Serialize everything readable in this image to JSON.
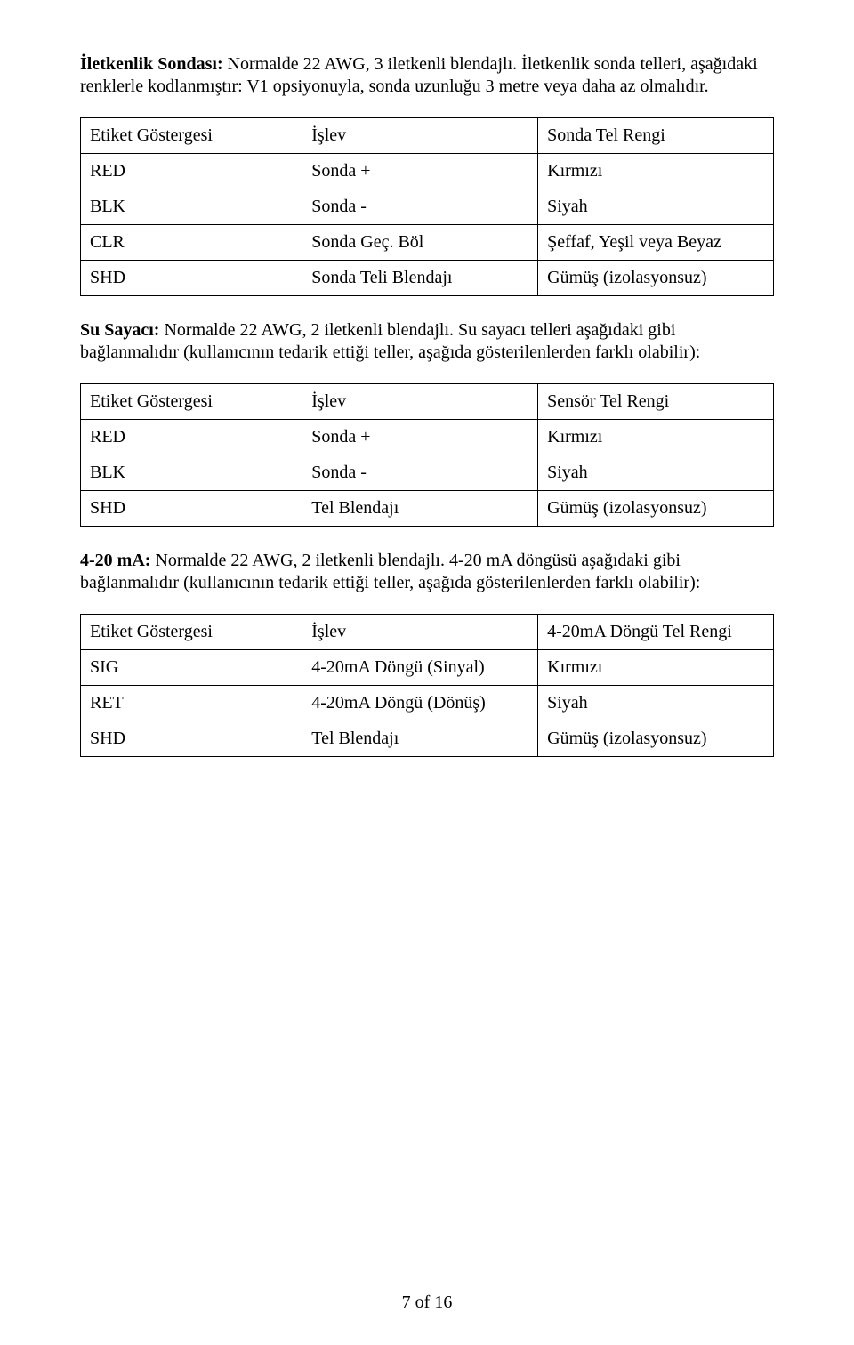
{
  "paragraphs": {
    "p1_bold": "İletkenlik Sondası:",
    "p1_rest": " Normalde 22 AWG, 3 iletkenli blendajlı.  İletkenlik sonda telleri, aşağıdaki renklerle kodlanmıştır:  V1 opsiyonuyla, sonda uzunluğu 3 metre veya daha az olmalıdır.",
    "p2_bold": "Su Sayacı:",
    "p2_rest": " Normalde 22 AWG, 2 iletkenli blendajlı.  Su sayacı telleri aşağıdaki gibi bağlanmalıdır (kullanıcının tedarik ettiği teller, aşağıda gösterilenlerden farklı olabilir):",
    "p3_bold": "4-20 mA:",
    "p3_rest": " Normalde 22 AWG, 2 iletkenli blendajlı.  4-20 mA döngüsü aşağıdaki gibi bağlanmalıdır (kullanıcının tedarik ettiği teller, aşağıda gösterilenlerden farklı olabilir):"
  },
  "table1": {
    "headers": [
      "Etiket Göstergesi",
      "İşlev",
      "Sonda Tel Rengi"
    ],
    "rows": [
      [
        "RED",
        "Sonda +",
        "Kırmızı"
      ],
      [
        "BLK",
        "Sonda -",
        "Siyah"
      ],
      [
        "CLR",
        "Sonda Geç. Böl",
        "Şeffaf, Yeşil veya Beyaz"
      ],
      [
        "SHD",
        "Sonda Teli Blendajı",
        "Gümüş (izolasyonsuz)"
      ]
    ]
  },
  "table2": {
    "headers": [
      "Etiket Göstergesi",
      "İşlev",
      "Sensör Tel Rengi"
    ],
    "rows": [
      [
        "RED",
        "Sonda +",
        "Kırmızı"
      ],
      [
        "BLK",
        "Sonda -",
        "Siyah"
      ],
      [
        "SHD",
        "Tel Blendajı",
        "Gümüş (izolasyonsuz)"
      ]
    ]
  },
  "table3": {
    "headers": [
      "Etiket Göstergesi",
      "İşlev",
      "4-20mA Döngü Tel Rengi"
    ],
    "rows": [
      [
        "SIG",
        "4-20mA Döngü (Sinyal)",
        "Kırmızı"
      ],
      [
        "RET",
        "4-20mA Döngü (Dönüş)",
        "Siyah"
      ],
      [
        "SHD",
        "Tel Blendajı",
        "Gümüş (izolasyonsuz)"
      ]
    ]
  },
  "footer": "7 of 16"
}
